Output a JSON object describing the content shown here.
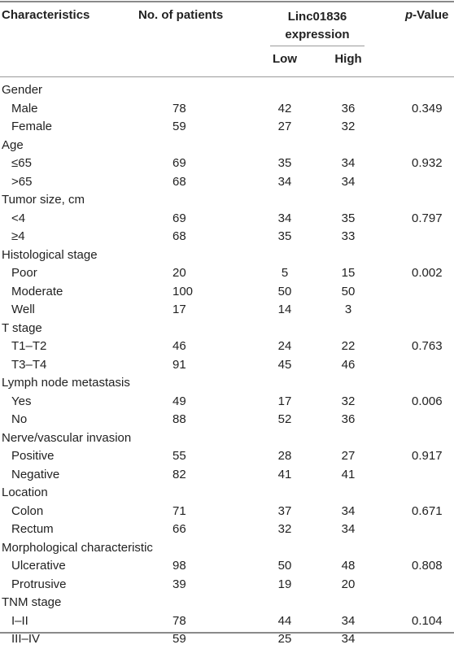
{
  "header": {
    "characteristics": "Characteristics",
    "patients": "No. of patients",
    "expression_line1": "Linc01836",
    "expression_line2": "expression",
    "low": "Low",
    "high": "High",
    "pvalue_italic": "p",
    "pvalue_rest": "-Value"
  },
  "rows": [
    {
      "type": "group",
      "label": "Gender"
    },
    {
      "type": "sub",
      "label": "Male",
      "n": "78",
      "low": "42",
      "high": "36",
      "p": "0.349"
    },
    {
      "type": "sub",
      "label": "Female",
      "n": "59",
      "low": "27",
      "high": "32",
      "p": ""
    },
    {
      "type": "group",
      "label": "Age"
    },
    {
      "type": "sub",
      "label": "≤65",
      "n": "69",
      "low": "35",
      "high": "34",
      "p": "0.932"
    },
    {
      "type": "sub",
      "label": ">65",
      "n": "68",
      "low": "34",
      "high": "34",
      "p": ""
    },
    {
      "type": "group",
      "label": "Tumor size, cm"
    },
    {
      "type": "sub",
      "label": "<4",
      "n": "69",
      "low": "34",
      "high": "35",
      "p": "0.797"
    },
    {
      "type": "sub",
      "label": "≥4",
      "n": "68",
      "low": "35",
      "high": "33",
      "p": ""
    },
    {
      "type": "group",
      "label": "Histological stage"
    },
    {
      "type": "sub",
      "label": "Poor",
      "n": "20",
      "low": "5",
      "high": "15",
      "p": "0.002"
    },
    {
      "type": "sub",
      "label": "Moderate",
      "n": "100",
      "low": "50",
      "high": "50",
      "p": ""
    },
    {
      "type": "sub",
      "label": "Well",
      "n": "17",
      "low": "14",
      "high": "3",
      "p": ""
    },
    {
      "type": "group",
      "label": "T stage"
    },
    {
      "type": "sub",
      "label": "T1–T2",
      "n": "46",
      "low": "24",
      "high": "22",
      "p": "0.763"
    },
    {
      "type": "sub",
      "label": "T3–T4",
      "n": "91",
      "low": "45",
      "high": "46",
      "p": ""
    },
    {
      "type": "group",
      "label": "Lymph node metastasis"
    },
    {
      "type": "sub",
      "label": "Yes",
      "n": "49",
      "low": "17",
      "high": "32",
      "p": "0.006"
    },
    {
      "type": "sub",
      "label": "No",
      "n": "88",
      "low": "52",
      "high": "36",
      "p": ""
    },
    {
      "type": "group",
      "label": "Nerve/vascular invasion"
    },
    {
      "type": "sub",
      "label": "Positive",
      "n": "55",
      "low": "28",
      "high": "27",
      "p": "0.917"
    },
    {
      "type": "sub",
      "label": "Negative",
      "n": "82",
      "low": "41",
      "high": "41",
      "p": ""
    },
    {
      "type": "group",
      "label": "Location"
    },
    {
      "type": "sub",
      "label": "Colon",
      "n": "71",
      "low": "37",
      "high": "34",
      "p": "0.671"
    },
    {
      "type": "sub",
      "label": "Rectum",
      "n": "66",
      "low": "32",
      "high": "34",
      "p": ""
    },
    {
      "type": "group",
      "label": "Morphological characteristic"
    },
    {
      "type": "sub",
      "label": "Ulcerative",
      "n": "98",
      "low": "50",
      "high": "48",
      "p": "0.808"
    },
    {
      "type": "sub",
      "label": "Protrusive",
      "n": "39",
      "low": "19",
      "high": "20",
      "p": ""
    },
    {
      "type": "group",
      "label": "TNM stage"
    },
    {
      "type": "sub",
      "label": "I–II",
      "n": "78",
      "low": "44",
      "high": "34",
      "p": "0.104"
    },
    {
      "type": "sub",
      "label": "III–IV",
      "n": "59",
      "low": "25",
      "high": "34",
      "p": ""
    }
  ]
}
